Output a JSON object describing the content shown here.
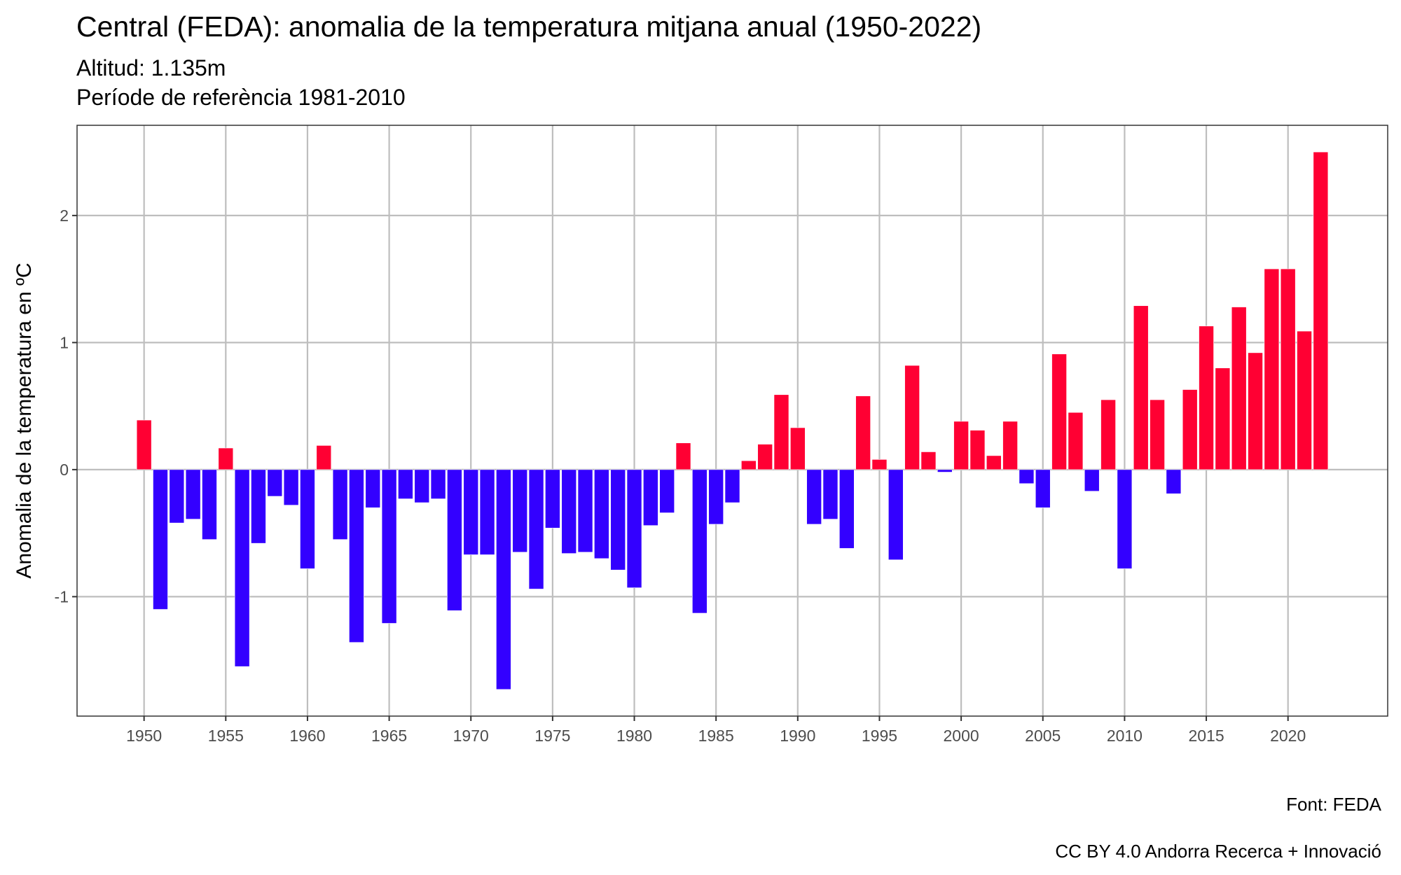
{
  "chart_data": {
    "type": "bar",
    "title": "Central (FEDA): anomalia de la temperatura mitjana anual (1950-2022)",
    "subtitle": [
      "Altitud: 1.135m",
      "Període de referència 1981-2010"
    ],
    "xlabel": "",
    "ylabel": "Anomalia de la temperatura en ºC",
    "caption": [
      "Font: FEDA",
      "CC BY 4.0 Andorra Recerca + Innovació"
    ],
    "xlim": [
      1945.9,
      2026.1
    ],
    "ylim": [
      -1.94,
      2.71
    ],
    "x_ticks": [
      1950,
      1955,
      1960,
      1965,
      1970,
      1975,
      1980,
      1985,
      1990,
      1995,
      2000,
      2005,
      2010,
      2015,
      2020
    ],
    "y_ticks": [
      -1,
      0,
      1,
      2
    ],
    "y_tick_labels": [
      "-1",
      "0",
      "1",
      "2"
    ],
    "grid": true,
    "legend": "none",
    "colors": {
      "positive": "#FF0033",
      "negative": "#3300FF",
      "grid": "#BEBEBE",
      "border": "#333333"
    },
    "x": [
      1950,
      1951,
      1952,
      1953,
      1954,
      1955,
      1956,
      1957,
      1958,
      1959,
      1960,
      1961,
      1962,
      1963,
      1964,
      1965,
      1966,
      1967,
      1968,
      1969,
      1970,
      1971,
      1972,
      1973,
      1974,
      1975,
      1976,
      1977,
      1978,
      1979,
      1980,
      1981,
      1982,
      1983,
      1984,
      1985,
      1986,
      1987,
      1988,
      1989,
      1990,
      1991,
      1992,
      1993,
      1994,
      1995,
      1996,
      1997,
      1998,
      1999,
      2000,
      2001,
      2002,
      2003,
      2004,
      2005,
      2006,
      2007,
      2008,
      2009,
      2010,
      2011,
      2012,
      2013,
      2014,
      2015,
      2016,
      2017,
      2018,
      2019,
      2020,
      2021,
      2022
    ],
    "values": [
      0.39,
      -1.1,
      -0.42,
      -0.39,
      -0.55,
      0.17,
      -1.55,
      -0.58,
      -0.21,
      -0.28,
      -0.78,
      0.19,
      -0.55,
      -1.36,
      -0.3,
      -1.21,
      -0.23,
      -0.26,
      -0.23,
      -1.11,
      -0.67,
      -0.67,
      -1.73,
      -0.65,
      -0.94,
      -0.46,
      -0.66,
      -0.65,
      -0.7,
      -0.79,
      -0.93,
      -0.44,
      -0.34,
      0.21,
      -1.13,
      -0.43,
      -0.26,
      0.07,
      0.2,
      0.59,
      0.33,
      -0.43,
      -0.39,
      -0.62,
      0.58,
      0.08,
      -0.71,
      0.82,
      0.14,
      -0.02,
      0.38,
      0.31,
      0.11,
      0.38,
      -0.11,
      -0.3,
      0.91,
      0.45,
      -0.17,
      0.55,
      -0.78,
      1.29,
      0.55,
      -0.19,
      0.63,
      1.13,
      0.8,
      1.28,
      0.92,
      1.58,
      1.58,
      1.09,
      2.5
    ]
  }
}
